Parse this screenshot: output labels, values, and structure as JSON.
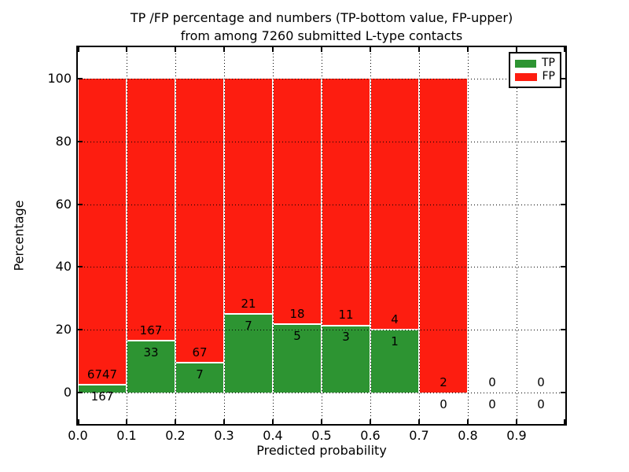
{
  "figure": {
    "title_line1": "TP /FP percentage and numbers (TP-bottom value, FP-upper)",
    "title_line2": "from among 7260 submitted L-type contacts"
  },
  "chart_data": {
    "type": "bar",
    "stacked": true,
    "normalized": "percentage",
    "title": "TP /FP percentage and numbers (TP-bottom value, FP-upper) from among 7260 submitted L-type contacts",
    "xlabel": "Predicted probability",
    "ylabel": "Percentage",
    "total_contacts": 7260,
    "bin_starts": [
      0.0,
      0.1,
      0.2,
      0.3,
      0.4,
      0.5,
      0.6,
      0.7,
      0.8,
      0.9
    ],
    "bin_width": 0.1,
    "series": [
      {
        "name": "TP",
        "color": "#2d9432",
        "counts": [
          167,
          33,
          7,
          7,
          5,
          3,
          1,
          0,
          0,
          0
        ]
      },
      {
        "name": "FP",
        "color": "#fd1d10",
        "counts": [
          6747,
          167,
          67,
          21,
          18,
          11,
          4,
          2,
          0,
          0
        ]
      }
    ],
    "tp_percent_of_bin": [
      2.4,
      16.5,
      9.5,
      25.0,
      21.7,
      21.4,
      20.0,
      0.0,
      0.0,
      0.0
    ],
    "xticks": [
      "0.0",
      "0.1",
      "0.2",
      "0.3",
      "0.4",
      "0.5",
      "0.6",
      "0.7",
      "0.8",
      "0.9"
    ],
    "yticks": [
      0,
      20,
      40,
      60,
      80,
      100
    ],
    "xlim": [
      0,
      1.0
    ],
    "ylim": [
      -10,
      110
    ],
    "grid": true,
    "grid_style": "dotted",
    "legend": {
      "position": "upper right",
      "entries": [
        {
          "label": "TP",
          "color": "#2d9432"
        },
        {
          "label": "FP",
          "color": "#fd1d10"
        }
      ]
    }
  }
}
